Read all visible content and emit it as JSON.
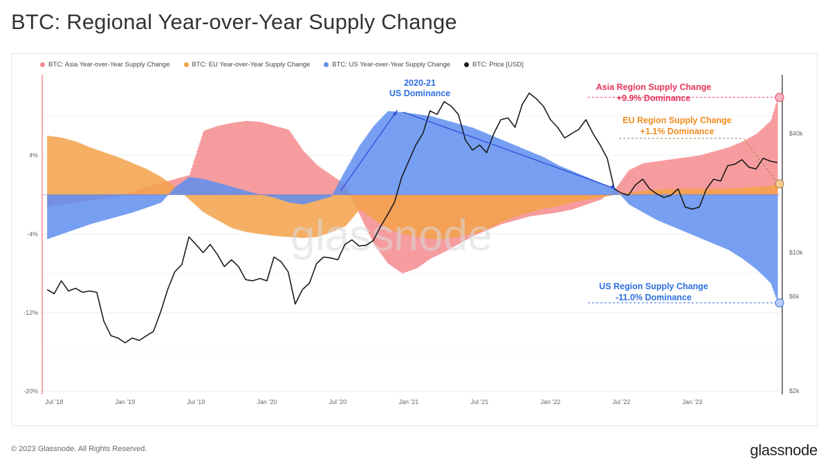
{
  "page": {
    "title": "BTC: Regional Year-over-Year Supply Change",
    "footer_copyright": "© 2023 Glassnode. All Rights Reserved.",
    "footer_logo": "glassnode",
    "watermark": "glassnode"
  },
  "colors": {
    "asia": "#f58b8e",
    "eu": "#f4a24a",
    "us": "#5f8ff0",
    "price": "#1a1a1a",
    "asia_label": "#e8335c",
    "eu_label": "#f08a1c",
    "us_label": "#2d6fe0"
  },
  "chart_data": {
    "type": "area",
    "legend": [
      {
        "label": "BTC: Asia Year-over-Year Supply Change",
        "color": "#f58b8e"
      },
      {
        "label": "BTC: EU Year-over-Year Supply Change",
        "color": "#f4a24a"
      },
      {
        "label": "BTC: US Year-over-Year Supply Change",
        "color": "#5f8ff0"
      },
      {
        "label": "BTC: Price [USD]",
        "color": "#1a1a1a"
      }
    ],
    "legend_placement": "top-left",
    "x_ticks": [
      "Jul '18",
      "Jan '19",
      "Jul '19",
      "Jan '20",
      "Jul '20",
      "Jan '21",
      "Jul '21",
      "Jan '22",
      "Jul '22",
      "Jan '23"
    ],
    "x_tick_dates": [
      2018.5,
      2019.0,
      2019.5,
      2020.0,
      2020.5,
      2021.0,
      2021.5,
      2022.0,
      2022.5,
      2023.0
    ],
    "x_range": [
      2018.42,
      2023.62
    ],
    "y_left_ticks": [
      "4%",
      "-4%",
      "-12%",
      "-20%"
    ],
    "y_left_values": [
      4,
      -4,
      -12,
      -20
    ],
    "y_left_range": [
      -20.3,
      12.2
    ],
    "y_right_ticks": [
      "$40k",
      "$10k",
      "$6k",
      "$2k"
    ],
    "y_right_values": [
      40000,
      10000,
      6000,
      2000
    ],
    "y_right_scale": "log",
    "grid": true,
    "series_supply": {
      "x": [
        2018.45,
        2018.55,
        2018.65,
        2018.75,
        2018.85,
        2018.95,
        2019.05,
        2019.15,
        2019.25,
        2019.35,
        2019.45,
        2019.55,
        2019.65,
        2019.75,
        2019.85,
        2019.95,
        2020.05,
        2020.15,
        2020.25,
        2020.35,
        2020.45,
        2020.55,
        2020.65,
        2020.75,
        2020.85,
        2020.95,
        2021.05,
        2021.15,
        2021.25,
        2021.35,
        2021.45,
        2021.55,
        2021.65,
        2021.75,
        2021.85,
        2021.95,
        2022.05,
        2022.15,
        2022.25,
        2022.35,
        2022.45,
        2022.55,
        2022.65,
        2022.75,
        2022.85,
        2022.95,
        2023.05,
        2023.15,
        2023.25,
        2023.35,
        2023.45,
        2023.55,
        2023.6
      ],
      "asia": [
        -1.2,
        -1.0,
        -0.8,
        -0.6,
        -0.4,
        -0.2,
        0.3,
        0.8,
        1.2,
        1.6,
        2.0,
        6.5,
        7.0,
        7.3,
        7.5,
        7.4,
        7.0,
        6.6,
        4.5,
        3.0,
        2.0,
        1.0,
        -2.0,
        -5.0,
        -7.0,
        -8.0,
        -7.5,
        -6.5,
        -5.8,
        -5.0,
        -4.2,
        -3.6,
        -3.0,
        -2.6,
        -2.2,
        -2.0,
        -1.8,
        -1.5,
        -1.0,
        -0.5,
        0.5,
        2.5,
        3.2,
        3.4,
        3.6,
        3.8,
        4.0,
        4.4,
        4.8,
        5.4,
        6.2,
        7.5,
        9.9
      ],
      "eu": [
        6.0,
        5.8,
        5.4,
        4.8,
        4.3,
        3.8,
        3.2,
        2.6,
        1.8,
        0.8,
        -0.5,
        -1.8,
        -2.6,
        -3.4,
        -3.8,
        -4.0,
        -4.2,
        -4.3,
        -4.4,
        -4.3,
        -3.8,
        -3.2,
        -1.5,
        -2.5,
        -3.5,
        -4.0,
        -4.3,
        -4.5,
        -4.5,
        -4.3,
        -4.0,
        -3.5,
        -2.8,
        -2.2,
        -1.8,
        -1.4,
        -1.2,
        -0.8,
        -0.5,
        -0.3,
        0.0,
        0.2,
        0.4,
        0.5,
        0.6,
        0.6,
        0.6,
        0.6,
        0.6,
        0.7,
        0.8,
        0.9,
        1.1
      ],
      "us": [
        -4.5,
        -4.0,
        -3.5,
        -3.0,
        -2.6,
        -2.2,
        -1.8,
        -1.3,
        -0.8,
        0.8,
        1.8,
        1.6,
        1.2,
        0.8,
        0.4,
        0.0,
        -0.3,
        -0.8,
        -1.0,
        -0.6,
        -0.2,
        2.5,
        5.0,
        7.0,
        8.5,
        8.4,
        8.2,
        8.0,
        7.6,
        7.2,
        6.8,
        6.2,
        5.6,
        5.0,
        4.4,
        3.8,
        3.0,
        2.4,
        1.8,
        1.2,
        0.6,
        -1.0,
        -1.8,
        -2.6,
        -3.2,
        -3.8,
        -4.4,
        -5.0,
        -5.6,
        -6.5,
        -7.6,
        -9.0,
        -11.0
      ]
    },
    "series_price": {
      "x": [
        2018.45,
        2018.5,
        2018.55,
        2018.6,
        2018.65,
        2018.7,
        2018.75,
        2018.8,
        2018.85,
        2018.9,
        2018.95,
        2019.0,
        2019.05,
        2019.1,
        2019.15,
        2019.2,
        2019.25,
        2019.3,
        2019.35,
        2019.4,
        2019.45,
        2019.5,
        2019.55,
        2019.6,
        2019.65,
        2019.7,
        2019.75,
        2019.8,
        2019.85,
        2019.9,
        2019.95,
        2020.0,
        2020.05,
        2020.1,
        2020.15,
        2020.2,
        2020.25,
        2020.3,
        2020.35,
        2020.4,
        2020.45,
        2020.5,
        2020.55,
        2020.6,
        2020.65,
        2020.7,
        2020.75,
        2020.8,
        2020.85,
        2020.9,
        2020.95,
        2021.0,
        2021.05,
        2021.1,
        2021.15,
        2021.2,
        2021.25,
        2021.3,
        2021.35,
        2021.4,
        2021.45,
        2021.5,
        2021.55,
        2021.6,
        2021.65,
        2021.7,
        2021.75,
        2021.8,
        2021.85,
        2021.9,
        2021.95,
        2022.0,
        2022.05,
        2022.1,
        2022.15,
        2022.2,
        2022.25,
        2022.3,
        2022.35,
        2022.4,
        2022.45,
        2022.5,
        2022.55,
        2022.6,
        2022.65,
        2022.7,
        2022.75,
        2022.8,
        2022.85,
        2022.9,
        2022.95,
        2023.0,
        2023.05,
        2023.1,
        2023.15,
        2023.2,
        2023.25,
        2023.3,
        2023.35,
        2023.4,
        2023.45,
        2023.5,
        2023.55,
        2023.6
      ],
      "values": [
        6500,
        6200,
        7200,
        6400,
        6600,
        6300,
        6400,
        6300,
        4500,
        3800,
        3700,
        3500,
        3700,
        3600,
        3800,
        4000,
        5000,
        6500,
        8000,
        8700,
        12000,
        11000,
        10000,
        11000,
        9800,
        8500,
        9200,
        8500,
        7300,
        7200,
        7400,
        7200,
        9500,
        9000,
        8000,
        5500,
        6500,
        7000,
        8800,
        9500,
        9400,
        9200,
        11000,
        11600,
        10800,
        10900,
        11500,
        13500,
        15500,
        18000,
        24000,
        29000,
        35000,
        40000,
        52000,
        50000,
        58000,
        55000,
        50000,
        37000,
        33000,
        35000,
        32000,
        40000,
        47000,
        48000,
        43000,
        56000,
        64000,
        60000,
        55000,
        47000,
        43000,
        38000,
        40000,
        42000,
        47000,
        40000,
        35000,
        30000,
        21000,
        20000,
        19500,
        22000,
        23500,
        21000,
        19800,
        19000,
        19500,
        21000,
        17000,
        16600,
        17000,
        21000,
        23500,
        23000,
        27500,
        28000,
        29500,
        27000,
        26500,
        30000,
        29000,
        28500
      ]
    },
    "annotations": {
      "us_dominance": {
        "line1": "2020-21",
        "line2": "US Dominance"
      },
      "asia": {
        "line1": "Asia Region Supply Change",
        "line2": "+9.9% Dominance",
        "value": 9.9
      },
      "eu": {
        "line1": "EU Region Supply Change",
        "line2": "+1.1% Dominance",
        "value": 1.1
      },
      "us": {
        "line1": "US Region Supply Change",
        "line2": "-11.0% Dominance",
        "value": -11.0
      }
    }
  }
}
